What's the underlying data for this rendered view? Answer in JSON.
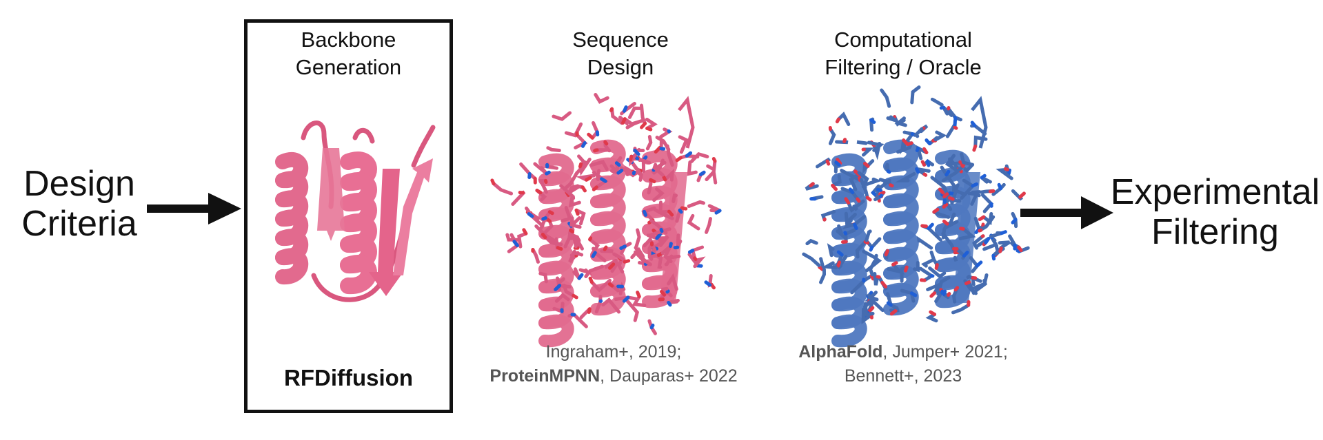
{
  "input": {
    "line1": "Design",
    "line2": "Criteria"
  },
  "stages": [
    {
      "title_line1": "Backbone",
      "title_line2": "Generation",
      "method": "RFDiffusion"
    },
    {
      "title_line1": "Sequence",
      "title_line2": "Design",
      "cite_line1": "Ingraham+, 2019;",
      "cite_line2_bold": "ProteinMPNN",
      "cite_line2_rest": ", Dauparas+ 2022"
    },
    {
      "title_line1": "Computational",
      "title_line2": "Filtering / Oracle",
      "cite_line1_bold": "AlphaFold",
      "cite_line1_rest": ", Jumper+ 2021;",
      "cite_line2": "Bennett+, 2023"
    }
  ],
  "output": {
    "line1": "Experimental",
    "line2": "Filtering"
  },
  "colors": {
    "pink": "#e26a8e",
    "blue": "#4f78c0",
    "accent_red": "#e0394a",
    "accent_blue": "#1f5fd6"
  },
  "icons": [
    "arrow-right-icon",
    "protein-backbone-icon",
    "protein-sidechain-icon"
  ]
}
